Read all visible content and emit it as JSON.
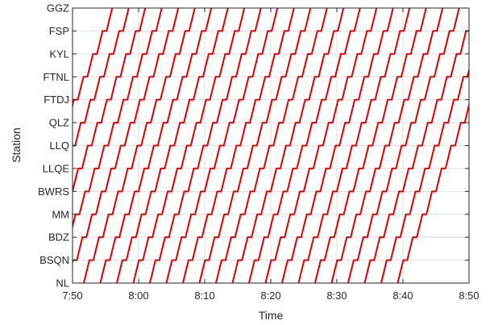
{
  "chart_data": {
    "type": "line",
    "title": "",
    "xlabel": "Time",
    "ylabel": "Station",
    "x_unit": "minutes",
    "x_ticks": [
      {
        "value": 470,
        "label": "7:50"
      },
      {
        "value": 480,
        "label": "8:00"
      },
      {
        "value": 490,
        "label": "8:10"
      },
      {
        "value": 500,
        "label": "8:20"
      },
      {
        "value": 510,
        "label": "8:30"
      },
      {
        "value": 520,
        "label": "8:40"
      },
      {
        "value": 530,
        "label": "8:50"
      }
    ],
    "xlim": [
      470,
      530
    ],
    "stations": [
      "NL",
      "BSQN",
      "BDZ",
      "MM",
      "BWRS",
      "LLQE",
      "LLQ",
      "QLZ",
      "FTDJ",
      "FTNL",
      "KYL",
      "FSP",
      "GGZ"
    ],
    "ylim": [
      0,
      12
    ],
    "grid": true,
    "line_color": "#e00000",
    "travel_time_min": 0.85,
    "dwell_time_min": 0.6,
    "series": [
      {
        "name": "",
        "start": 459.2
      },
      {
        "name": "",
        "start": 461.7
      },
      {
        "name": "",
        "start": 464.2
      },
      {
        "name": "",
        "start": 466.7
      },
      {
        "name": "",
        "start": 469.2
      },
      {
        "name": "",
        "start": 471.7
      },
      {
        "name": "",
        "start": 474.2
      },
      {
        "name": "",
        "start": 476.7
      },
      {
        "name": "",
        "start": 479.2
      },
      {
        "name": "",
        "start": 481.7
      },
      {
        "name": "",
        "start": 484.2
      },
      {
        "name": "",
        "start": 486.7
      },
      {
        "name": "",
        "start": 489.2
      },
      {
        "name": "",
        "start": 491.7
      },
      {
        "name": "",
        "start": 494.2
      },
      {
        "name": "",
        "start": 496.7
      },
      {
        "name": "",
        "start": 499.2
      },
      {
        "name": "",
        "start": 501.7
      },
      {
        "name": "",
        "start": 504.2
      },
      {
        "name": "",
        "start": 506.7
      },
      {
        "name": "",
        "start": 509.2
      },
      {
        "name": "",
        "start": 511.7
      },
      {
        "name": "",
        "start": 514.2
      },
      {
        "name": "",
        "start": 516.7
      },
      {
        "name": "",
        "start": 519.2
      }
    ]
  }
}
